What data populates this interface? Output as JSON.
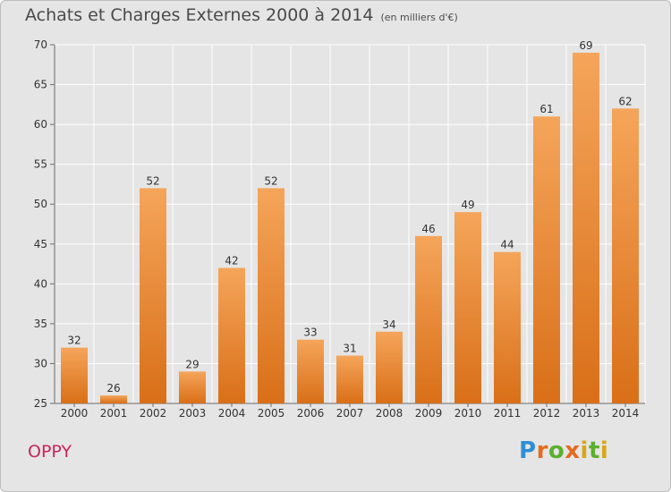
{
  "chart_data": {
    "type": "bar",
    "title": "Achats et Charges Externes 2000 à 2014",
    "unit": "(en milliers d'€)",
    "categories": [
      "2000",
      "2001",
      "2002",
      "2003",
      "2004",
      "2005",
      "2006",
      "2007",
      "2008",
      "2009",
      "2010",
      "2011",
      "2012",
      "2013",
      "2014"
    ],
    "values": [
      32,
      26,
      52,
      29,
      42,
      52,
      33,
      31,
      34,
      46,
      49,
      44,
      61,
      69,
      62
    ],
    "yticks": [
      25,
      30,
      35,
      40,
      45,
      50,
      55,
      60,
      65,
      70
    ],
    "ylim": [
      25,
      70
    ],
    "grid": true,
    "bar_color_top": "#f5a55a",
    "bar_color_bottom": "#d96f18"
  },
  "footer": {
    "commune": "OPPY",
    "brand_letters": [
      "P",
      "r",
      "o",
      "x",
      "i",
      "t",
      "i"
    ]
  }
}
